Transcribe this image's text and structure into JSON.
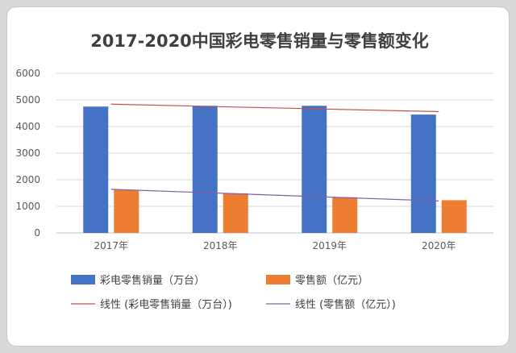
{
  "chart_data": {
    "type": "bar",
    "title": "2017-2020中国彩电零售销量与零售额变化",
    "categories": [
      "2017年",
      "2018年",
      "2019年",
      "2020年"
    ],
    "ylim": [
      0,
      6000
    ],
    "yticks": [
      0,
      1000,
      2000,
      3000,
      4000,
      5000,
      6000
    ],
    "grid": true,
    "legend_position": "bottom",
    "series": [
      {
        "name": "彩电零售销量（万台）",
        "values": [
          4750,
          4780,
          4780,
          4450
        ],
        "color": "#4472C4"
      },
      {
        "name": "零售额（亿元）",
        "values": [
          1620,
          1490,
          1340,
          1230
        ],
        "color": "#ED7D31"
      }
    ],
    "trendlines": [
      {
        "name": "线性 (彩电零售销量（万台）)",
        "start": 4840,
        "end": 4560,
        "color": "#C0504D"
      },
      {
        "name": "线性 (零售额（亿元）)",
        "start": 1640,
        "end": 1200,
        "color": "#7F5FA8"
      }
    ]
  }
}
